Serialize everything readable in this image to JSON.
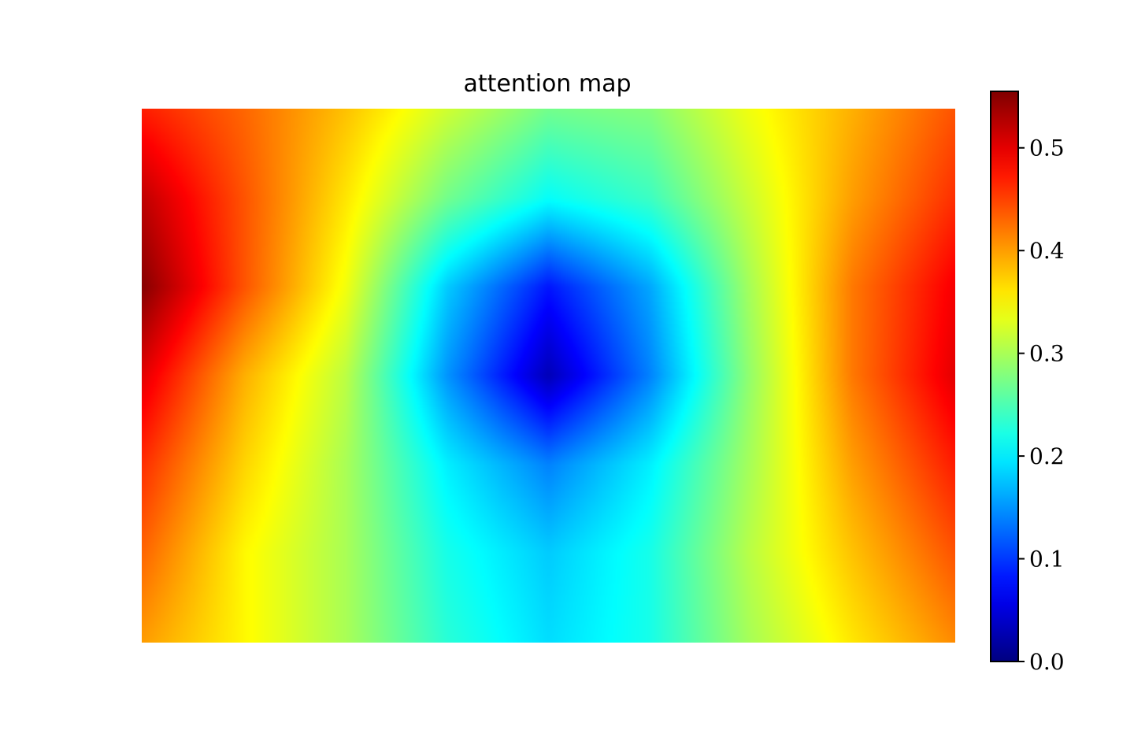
{
  "chart_data": {
    "type": "heatmap",
    "title": "attention map",
    "colormap": "jet",
    "axes_visible": false,
    "grid": false,
    "x": [
      0.0,
      0.125,
      0.25,
      0.375,
      0.5,
      0.625,
      0.75,
      0.875,
      1.0
    ],
    "y": [
      0.0,
      0.167,
      0.333,
      0.5,
      0.667,
      0.833,
      1.0
    ],
    "values": [
      [
        0.47,
        0.43,
        0.38,
        0.32,
        0.27,
        0.28,
        0.34,
        0.39,
        0.44
      ],
      [
        0.52,
        0.44,
        0.36,
        0.27,
        0.21,
        0.24,
        0.32,
        0.4,
        0.46
      ],
      [
        0.55,
        0.44,
        0.34,
        0.18,
        0.08,
        0.16,
        0.3,
        0.42,
        0.49
      ],
      [
        0.5,
        0.39,
        0.31,
        0.15,
        0.03,
        0.14,
        0.29,
        0.42,
        0.5
      ],
      [
        0.46,
        0.37,
        0.3,
        0.2,
        0.14,
        0.2,
        0.3,
        0.4,
        0.47
      ],
      [
        0.43,
        0.35,
        0.3,
        0.22,
        0.18,
        0.22,
        0.31,
        0.38,
        0.44
      ],
      [
        0.4,
        0.35,
        0.3,
        0.23,
        0.19,
        0.22,
        0.3,
        0.36,
        0.41
      ]
    ],
    "vmin": 0.0,
    "vmax": 0.555,
    "colorbar": {
      "location": "right",
      "ticks": [
        0.0,
        0.1,
        0.2,
        0.3,
        0.4,
        0.5
      ],
      "tick_labels": [
        "0.0",
        "0.1",
        "0.2",
        "0.3",
        "0.4",
        "0.5"
      ]
    }
  }
}
